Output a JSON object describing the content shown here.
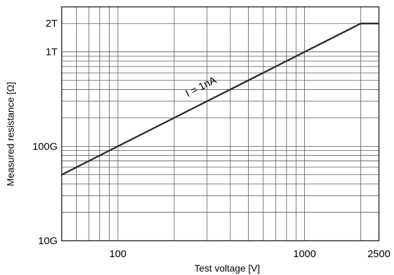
{
  "chart_data": {
    "type": "line",
    "title": "",
    "xlabel": "Test voltage [V]",
    "ylabel": "Measured resistance [Ω]",
    "x_scale": "log",
    "y_scale": "log",
    "xlim": [
      50,
      2500
    ],
    "ylim": [
      10000000000,
      3000000000000
    ],
    "grid": true,
    "x_ticks": [
      {
        "value": 100,
        "label": "100"
      },
      {
        "value": 1000,
        "label": "1000"
      },
      {
        "value": 2500,
        "label": "2500"
      }
    ],
    "y_ticks": [
      {
        "value": 10000000000,
        "label": "10G"
      },
      {
        "value": 100000000000,
        "label": "100G"
      },
      {
        "value": 1000000000000,
        "label": "1T"
      },
      {
        "value": 2000000000000,
        "label": "2T"
      }
    ],
    "series": [
      {
        "x": [
          50,
          100,
          1000,
          2000,
          2500
        ],
        "y": [
          50000000000,
          100000000000,
          1000000000000,
          2000000000000,
          2000000000000
        ]
      }
    ],
    "annotations": [
      {
        "text": "I = 1nA",
        "x": 300,
        "y": 300000000000
      }
    ]
  }
}
